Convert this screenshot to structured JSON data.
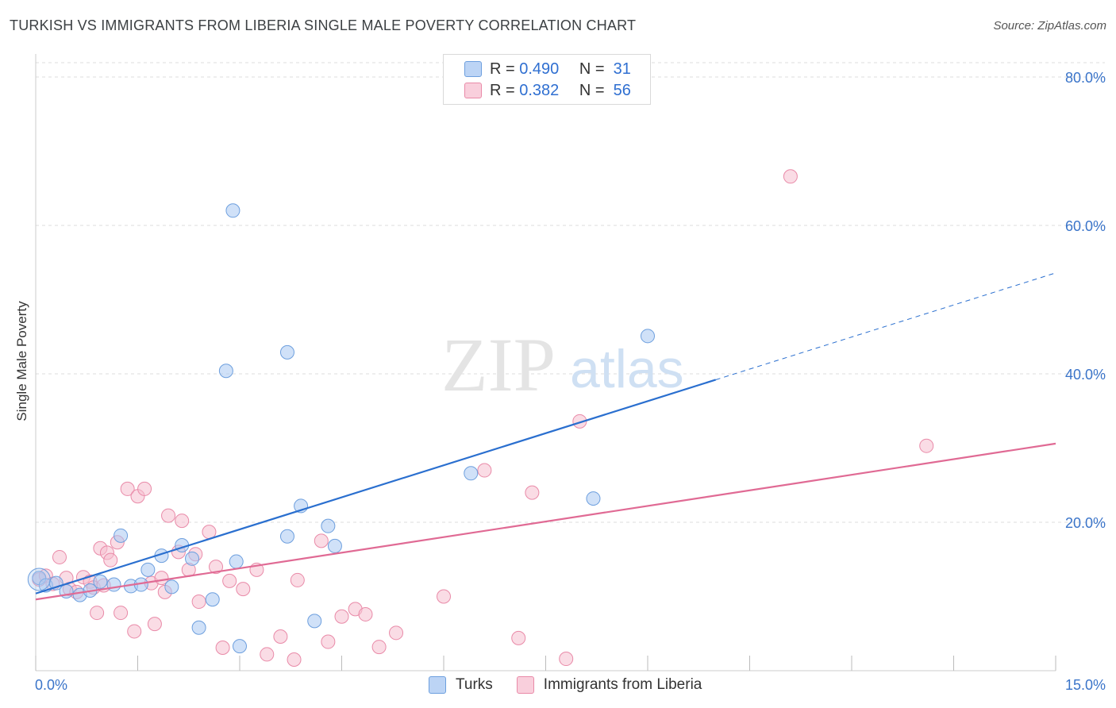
{
  "title": "TURKISH VS IMMIGRANTS FROM LIBERIA SINGLE MALE POVERTY CORRELATION CHART",
  "source": "Source: ZipAtlas.com",
  "watermark": {
    "zip": "ZIP",
    "atlas": "atlas"
  },
  "colors": {
    "turks_fill": "#a9c8f2",
    "turks_stroke": "#6d9fde",
    "turks_line": "#2a6fcf",
    "liberia_fill": "#f6bfd0",
    "liberia_stroke": "#e98aa8",
    "liberia_line": "#e06a94",
    "axis_text": "#3a74c9",
    "grid": "#dddddd"
  },
  "legend": {
    "rows": [
      {
        "r_label": "R =",
        "r_value": "0.490",
        "n_label": "N =",
        "n_value": "31"
      },
      {
        "r_label": "R =",
        "r_value": "0.382",
        "n_label": "N =",
        "n_value": "56"
      }
    ]
  },
  "bottom_legend": [
    "Turks",
    "Immigrants from Liberia"
  ],
  "chart_data": {
    "type": "scatter",
    "title": "TURKISH VS IMMIGRANTS FROM LIBERIA SINGLE MALE POVERTY CORRELATION CHART",
    "xlabel": "",
    "ylabel": "Single Male Poverty",
    "xlim": [
      0,
      15
    ],
    "ylim": [
      0,
      80
    ],
    "x_tick_labels": [
      "0.0%",
      "15.0%"
    ],
    "y_tick_labels": [
      "20.0%",
      "40.0%",
      "60.0%",
      "80.0%"
    ],
    "y_ticks": [
      20,
      40,
      60,
      80
    ],
    "grid": true,
    "legend_position": "top-center",
    "series": [
      {
        "name": "Turks",
        "r": 0.49,
        "n": 31,
        "points": [
          [
            0.05,
            12.5
          ],
          [
            0.15,
            11.5
          ],
          [
            0.3,
            11.8
          ],
          [
            0.45,
            10.7
          ],
          [
            0.65,
            10.2
          ],
          [
            0.8,
            10.8
          ],
          [
            0.95,
            12.0
          ],
          [
            1.15,
            11.6
          ],
          [
            1.25,
            18.2
          ],
          [
            1.4,
            11.4
          ],
          [
            1.55,
            11.6
          ],
          [
            1.65,
            13.6
          ],
          [
            1.85,
            15.5
          ],
          [
            2.0,
            11.3
          ],
          [
            2.15,
            16.9
          ],
          [
            2.3,
            15.1
          ],
          [
            2.4,
            5.8
          ],
          [
            2.6,
            9.6
          ],
          [
            2.8,
            40.4
          ],
          [
            2.9,
            62.0
          ],
          [
            2.95,
            14.7
          ],
          [
            3.0,
            3.3
          ],
          [
            3.7,
            42.9
          ],
          [
            3.7,
            18.1
          ],
          [
            3.9,
            22.2
          ],
          [
            4.1,
            6.7
          ],
          [
            4.3,
            19.5
          ],
          [
            4.4,
            16.8
          ],
          [
            6.4,
            26.6
          ],
          [
            8.2,
            23.2
          ],
          [
            9.0,
            45.1
          ]
        ],
        "trend": {
          "x0": 0.0,
          "y0": 10.4,
          "x1": 10.0,
          "y1": 39.2,
          "dash_to_x": 15.0,
          "dash_to_y": 53.6
        }
      },
      {
        "name": "Immigrants from Liberia",
        "r": 0.382,
        "n": 56,
        "points": [
          [
            0.05,
            12.3
          ],
          [
            0.15,
            12.8
          ],
          [
            0.25,
            11.7
          ],
          [
            0.35,
            15.3
          ],
          [
            0.45,
            12.5
          ],
          [
            0.5,
            11.0
          ],
          [
            0.6,
            10.6
          ],
          [
            0.7,
            12.6
          ],
          [
            0.8,
            12.0
          ],
          [
            0.85,
            11.2
          ],
          [
            0.9,
            7.8
          ],
          [
            0.95,
            16.5
          ],
          [
            1.0,
            11.5
          ],
          [
            1.05,
            15.9
          ],
          [
            1.1,
            14.9
          ],
          [
            1.2,
            17.3
          ],
          [
            1.25,
            7.8
          ],
          [
            1.35,
            24.5
          ],
          [
            1.45,
            5.3
          ],
          [
            1.5,
            23.5
          ],
          [
            1.6,
            24.5
          ],
          [
            1.7,
            11.8
          ],
          [
            1.75,
            6.3
          ],
          [
            1.85,
            12.5
          ],
          [
            1.9,
            10.6
          ],
          [
            1.95,
            20.9
          ],
          [
            2.1,
            16.0
          ],
          [
            2.15,
            20.2
          ],
          [
            2.25,
            13.6
          ],
          [
            2.35,
            15.7
          ],
          [
            2.4,
            9.3
          ],
          [
            2.55,
            18.7
          ],
          [
            2.65,
            14.0
          ],
          [
            2.75,
            3.1
          ],
          [
            2.85,
            12.1
          ],
          [
            3.05,
            11.0
          ],
          [
            3.25,
            13.6
          ],
          [
            3.4,
            2.2
          ],
          [
            3.6,
            4.6
          ],
          [
            3.8,
            1.5
          ],
          [
            3.85,
            12.2
          ],
          [
            4.2,
            17.5
          ],
          [
            4.3,
            3.9
          ],
          [
            4.5,
            7.3
          ],
          [
            4.7,
            8.3
          ],
          [
            4.85,
            7.6
          ],
          [
            5.05,
            3.2
          ],
          [
            5.3,
            5.1
          ],
          [
            6.0,
            10.0
          ],
          [
            6.6,
            27.0
          ],
          [
            7.1,
            4.4
          ],
          [
            7.3,
            24.0
          ],
          [
            7.8,
            1.6
          ],
          [
            8.0,
            33.6
          ],
          [
            11.1,
            66.6
          ],
          [
            13.1,
            30.3
          ]
        ],
        "trend": {
          "x0": 0.0,
          "y0": 9.6,
          "x1": 15.0,
          "y1": 30.6
        }
      }
    ]
  }
}
